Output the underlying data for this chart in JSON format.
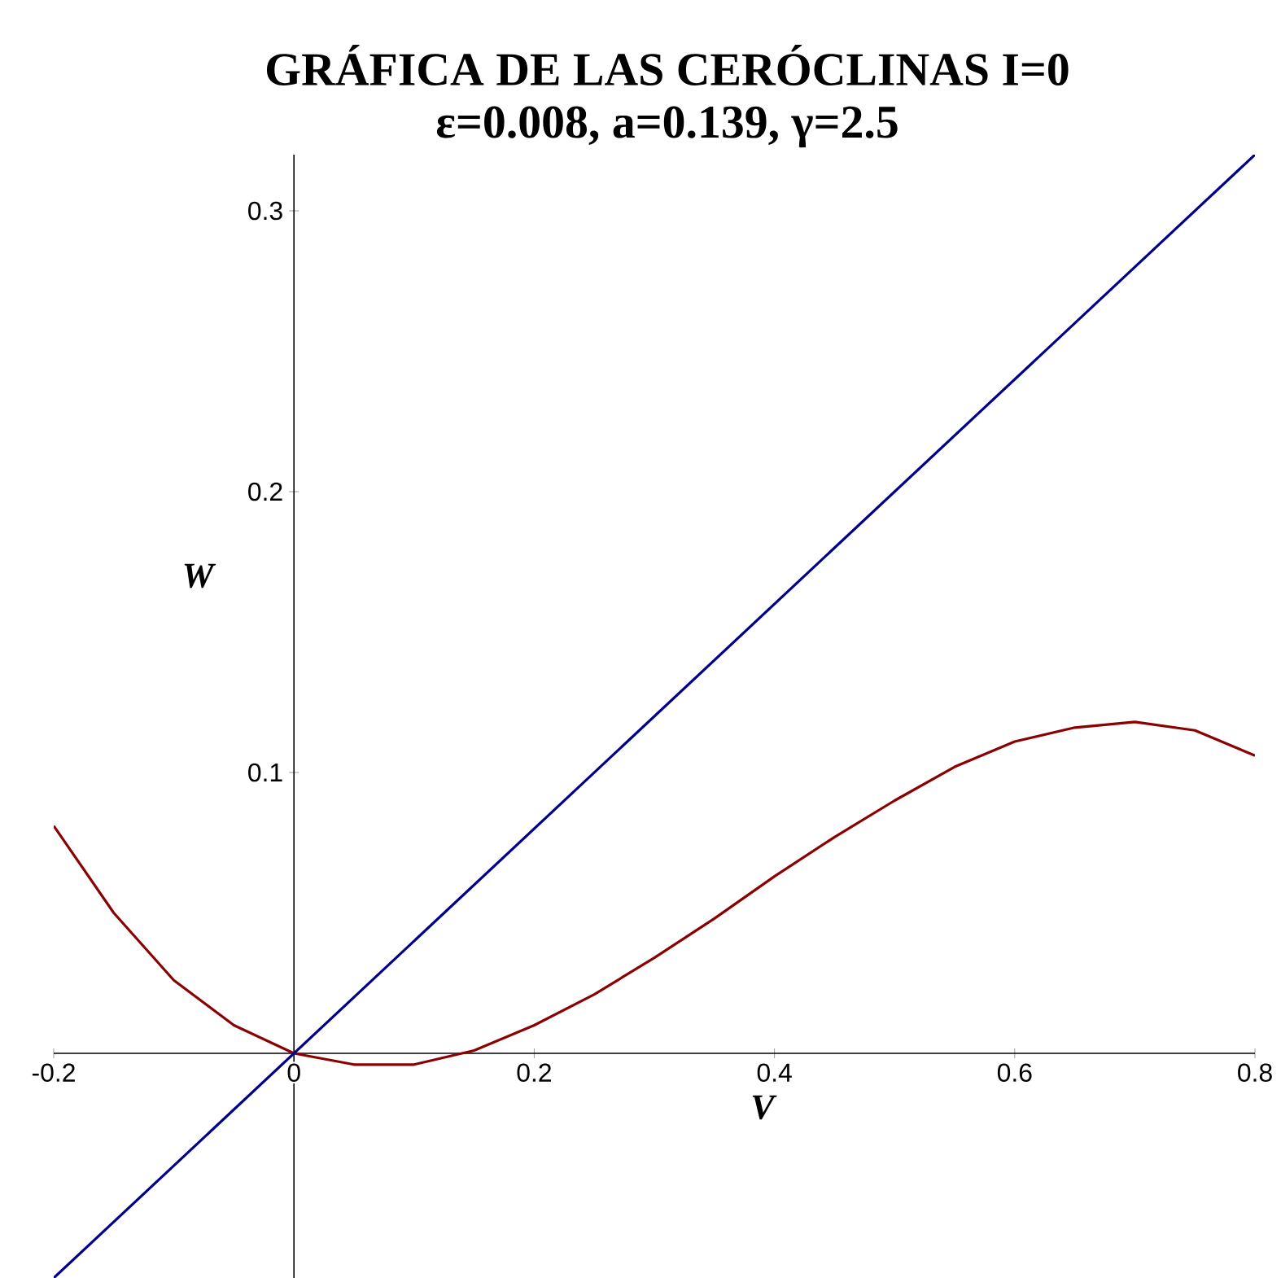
{
  "chart_data": {
    "type": "line",
    "title": "GRÁFICA DE LAS CERÓCLINAS  I=0",
    "subtitle": "ε=0.008, a=0.139, γ=2.5",
    "xlabel": "V",
    "ylabel": "W",
    "series": [
      {
        "color": "#8b0000",
        "x": [
          -0.2,
          -0.15,
          -0.1,
          -0.05,
          0,
          0.05,
          0.1,
          0.15,
          0.2,
          0.25,
          0.3,
          0.35,
          0.4,
          0.45,
          0.5,
          0.55,
          0.6,
          0.65,
          0.7,
          0.75,
          0.8
        ],
        "values": [
          0.081,
          0.05,
          0.026,
          0.01,
          0,
          -0.004,
          -0.004,
          0.001,
          0.01,
          0.021,
          0.034,
          0.048,
          0.063,
          0.077,
          0.09,
          0.102,
          0.111,
          0.116,
          0.118,
          0.115,
          0.106
        ]
      },
      {
        "color": "#00008b",
        "x": [
          -0.2,
          0.8
        ],
        "values": [
          -0.08,
          0.32
        ]
      }
    ],
    "xlim": [
      -0.2,
      0.8
    ],
    "ylim": [
      -0.08,
      0.32
    ],
    "xticks": [
      -0.2,
      0,
      0.2,
      0.4,
      0.6,
      0.8
    ],
    "yticks": [
      0.1,
      0.2,
      0.3
    ],
    "grid": false,
    "marker": "none",
    "line_style": "solid"
  }
}
